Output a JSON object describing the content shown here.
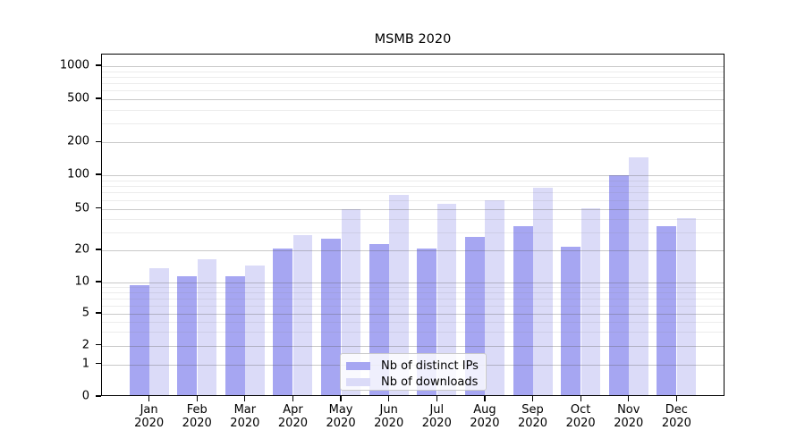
{
  "title": "MSMB 2020",
  "chart_data": {
    "type": "bar",
    "title": "MSMB 2020",
    "categories": [
      "Jan 2020",
      "Feb 2020",
      "Mar 2020",
      "Apr 2020",
      "May 2020",
      "Jun 2020",
      "Jul 2020",
      "Aug 2020",
      "Sep 2020",
      "Oct 2020",
      "Nov 2020",
      "Dec 2020"
    ],
    "series": [
      {
        "name": "Nb of distinct IPs",
        "color": "#a6a6f2",
        "values": [
          9,
          11,
          11,
          20,
          25,
          22,
          20,
          26,
          33,
          21,
          97,
          33
        ]
      },
      {
        "name": "Nb of downloads",
        "color": "#dbdbf8",
        "values": [
          13,
          16,
          14,
          27,
          48,
          64,
          54,
          58,
          75,
          49,
          140,
          39
        ]
      }
    ],
    "xlabel": "",
    "ylabel": "",
    "yscale": "symlog",
    "ymin": 0,
    "ymax": 1280,
    "yticks": [
      0,
      1,
      2,
      5,
      10,
      20,
      50,
      100,
      200,
      500,
      1000
    ],
    "yticks_minor": [
      3,
      4,
      6,
      7,
      8,
      9,
      30,
      40,
      60,
      70,
      80,
      90,
      300,
      400,
      600,
      700,
      800,
      900
    ],
    "grid": true,
    "legend_position": "lower center"
  },
  "legend": {
    "items": [
      {
        "label": "Nb of distinct IPs",
        "color": "#a6a6f2"
      },
      {
        "label": "Nb of downloads",
        "color": "#dbdbf8"
      }
    ]
  }
}
